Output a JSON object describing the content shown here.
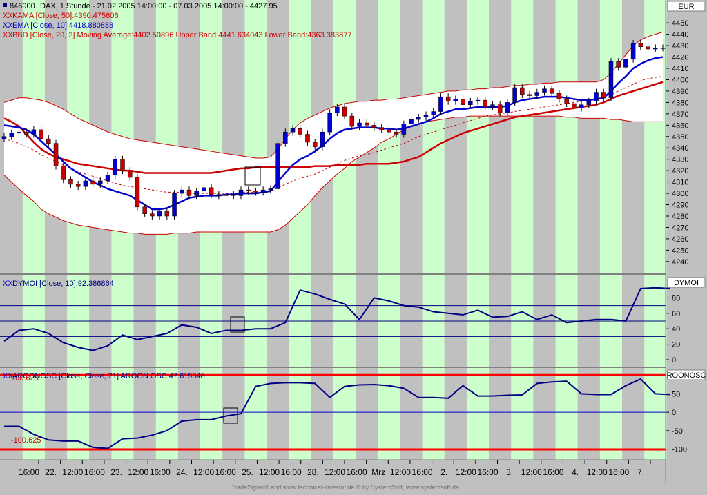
{
  "header": {
    "symbol": "846900",
    "name_line": "DAX, 1 Stunde - 21.02.2005 14:00:00 - 07.03.2005 14:00:00 - 4427.95",
    "kama_label": "KAMA [Close, 50]:4390.475606",
    "ema_label": "EMA [Close, 10]:4418.880888",
    "bbd_label": "BBD [Close, 20, 2] Moving Average:4402.50896 Upper Band:4441.634043 Lower Band:4363.383877",
    "dymoi_label": "DYMOI [Close, 10]:92.386864",
    "aroon_label": "AROONOSC [Close, Close, 21] AROON OSC:47.619048",
    "xx_mark": "XX"
  },
  "axes": {
    "price_unit": "EUR",
    "dymoi_unit": "DYMOI",
    "aroon_unit": "ROONOSC",
    "aroon_upper_label": "100.625",
    "aroon_lower_label": "-100.625"
  },
  "footer": {
    "credit": "TradeSignal® and www.technical-investor.de © by SystemSoft, www.systemsoft.de"
  },
  "colors": {
    "up_candle": "#0000cc",
    "down_candle": "#cc0000",
    "ema": "#0000cc",
    "kama": "#cc0000",
    "band": "#cc0000",
    "green_session": "#ccffcc",
    "grey_session": "#c0c0c0",
    "oscillator": "#000080"
  },
  "chart_data": [
    {
      "type": "candlestick",
      "title": "846900 DAX, 1 Stunde",
      "ylabel": "EUR",
      "ylim": [
        4232,
        4458
      ],
      "yticks": [
        4240,
        4250,
        4260,
        4270,
        4280,
        4290,
        4300,
        4310,
        4320,
        4330,
        4340,
        4350,
        4360,
        4370,
        4380,
        4390,
        4400,
        4410,
        4420,
        4430,
        4440,
        4450
      ],
      "x_labels": [
        "16:00",
        "22.",
        "12:00",
        "16:00",
        "23.",
        "12:00",
        "16:00",
        "24.",
        "12:00",
        "16:00",
        "25.",
        "12:00",
        "16:00",
        "28.",
        "12:00",
        "16:00",
        "Mrz",
        "12:00",
        "16:00",
        "2.",
        "12:00",
        "16:00",
        "3.",
        "12:00",
        "16:00",
        "4.",
        "12:00",
        "16:00",
        "7."
      ],
      "closes": [
        4350,
        4353,
        4354,
        4352,
        4356,
        4348,
        4344,
        4324,
        4312,
        4308,
        4306,
        4311,
        4308,
        4311,
        4316,
        4330,
        4320,
        4314,
        4288,
        4282,
        4280,
        4284,
        4280,
        4300,
        4303,
        4298,
        4302,
        4305,
        4299,
        4298,
        4299,
        4298,
        4303,
        4302,
        4301,
        4303,
        4304,
        4344,
        4354,
        4357,
        4352,
        4345,
        4341,
        4354,
        4371,
        4376,
        4368,
        4359,
        4362,
        4360,
        4358,
        4356,
        4354,
        4352,
        4361,
        4365,
        4367,
        4369,
        4372,
        4385,
        4381,
        4383,
        4378,
        4381,
        4382,
        4376,
        4378,
        4371,
        4380,
        4393,
        4387,
        4386,
        4389,
        4392,
        4388,
        4383,
        4379,
        4375,
        4378,
        4381,
        4389,
        4384,
        4416,
        4411,
        4418,
        4432,
        4429,
        4427,
        4428,
        4428
      ],
      "series": [
        {
          "name": "KAMA [Close, 50]",
          "values": [
            4366,
            4363,
            4359,
            4352,
            4345,
            4339,
            4335,
            4332,
            4330,
            4328,
            4326,
            4325,
            4324,
            4323,
            4322,
            4321,
            4320,
            4320,
            4319,
            4318,
            4318,
            4318,
            4318,
            4318,
            4318,
            4318,
            4318,
            4318,
            4318,
            4319,
            4320,
            4321,
            4322,
            4322,
            4323,
            4323,
            4323,
            4323,
            4323,
            4323,
            4323,
            4323,
            4324,
            4324,
            4324,
            4325,
            4325,
            4325,
            4325,
            4326,
            4326,
            4326,
            4326,
            4327,
            4328,
            4330,
            4332,
            4336,
            4340,
            4344,
            4347,
            4350,
            4353,
            4355,
            4357,
            4359,
            4361,
            4363,
            4365,
            4367,
            4368,
            4369,
            4370,
            4371,
            4372,
            4373,
            4374,
            4375,
            4376,
            4377,
            4378,
            4380,
            4383,
            4386,
            4388,
            4390,
            4392,
            4394,
            4396,
            4398
          ]
        },
        {
          "name": "EMA [Close, 10]",
          "values": [
            4360,
            4359,
            4358,
            4356,
            4352,
            4346,
            4340,
            4334,
            4328,
            4322,
            4318,
            4314,
            4310,
            4307,
            4304,
            4302,
            4300,
            4298,
            4294,
            4290,
            4286,
            4286,
            4287,
            4290,
            4293,
            4296,
            4297,
            4298,
            4298,
            4298,
            4299,
            4299,
            4300,
            4300,
            4300,
            4301,
            4302,
            4310,
            4318,
            4325,
            4330,
            4333,
            4337,
            4342,
            4348,
            4353,
            4356,
            4357,
            4358,
            4358,
            4358,
            4357,
            4357,
            4356,
            4357,
            4359,
            4361,
            4363,
            4366,
            4370,
            4372,
            4374,
            4374,
            4375,
            4376,
            4376,
            4376,
            4376,
            4377,
            4380,
            4382,
            4383,
            4384,
            4385,
            4385,
            4385,
            4384,
            4383,
            4382,
            4382,
            4383,
            4384,
            4390,
            4397,
            4403,
            4410,
            4414,
            4417,
            4419,
            4420
          ]
        },
        {
          "name": "Moving Average",
          "values": [
            4348,
            4346,
            4344,
            4341,
            4338,
            4334,
            4331,
            4328,
            4325,
            4322,
            4319,
            4317,
            4315,
            4313,
            4311,
            4309,
            4307,
            4306,
            4305,
            4304,
            4303,
            4302,
            4301,
            4301,
            4301,
            4300,
            4300,
            4300,
            4300,
            4300,
            4300,
            4300,
            4301,
            4301,
            4301,
            4301,
            4302,
            4305,
            4308,
            4311,
            4313,
            4315,
            4317,
            4320,
            4323,
            4326,
            4329,
            4331,
            4333,
            4334,
            4336,
            4338,
            4340,
            4342,
            4344,
            4347,
            4350,
            4352,
            4354,
            4356,
            4358,
            4360,
            4362,
            4364,
            4366,
            4368,
            4369,
            4370,
            4371,
            4372,
            4373,
            4374,
            4375,
            4376,
            4377,
            4378,
            4379,
            4380,
            4381,
            4382,
            4383,
            4385,
            4387,
            4390,
            4393,
            4396,
            4399,
            4401,
            4402,
            4403
          ]
        },
        {
          "name": "Upper Band",
          "values": [
            4380,
            4382,
            4384,
            4384,
            4383,
            4382,
            4380,
            4377,
            4374,
            4370,
            4366,
            4363,
            4360,
            4357,
            4354,
            4352,
            4350,
            4348,
            4347,
            4346,
            4345,
            4344,
            4343,
            4342,
            4341,
            4340,
            4339,
            4338,
            4337,
            4336,
            4335,
            4334,
            4333,
            4332,
            4331,
            4331,
            4332,
            4339,
            4348,
            4356,
            4362,
            4366,
            4369,
            4372,
            4375,
            4377,
            4379,
            4380,
            4381,
            4381,
            4382,
            4382,
            4383,
            4383,
            4384,
            4385,
            4386,
            4387,
            4388,
            4389,
            4390,
            4390,
            4391,
            4391,
            4392,
            4392,
            4393,
            4393,
            4394,
            4395,
            4395,
            4396,
            4396,
            4397,
            4397,
            4398,
            4398,
            4398,
            4398,
            4398,
            4398,
            4400,
            4406,
            4414,
            4422,
            4430,
            4435,
            4438,
            4440,
            4442
          ]
        },
        {
          "name": "Lower Band",
          "values": [
            4316,
            4310,
            4304,
            4298,
            4293,
            4286,
            4282,
            4279,
            4276,
            4274,
            4272,
            4271,
            4270,
            4269,
            4268,
            4267,
            4266,
            4265,
            4265,
            4264,
            4264,
            4264,
            4264,
            4265,
            4265,
            4265,
            4266,
            4266,
            4266,
            4266,
            4266,
            4266,
            4266,
            4266,
            4266,
            4266,
            4266,
            4268,
            4272,
            4278,
            4284,
            4290,
            4298,
            4305,
            4311,
            4317,
            4322,
            4328,
            4332,
            4336,
            4340,
            4345,
            4348,
            4352,
            4356,
            4359,
            4361,
            4363,
            4364,
            4365,
            4366,
            4367,
            4367,
            4368,
            4368,
            4368,
            4368,
            4368,
            4368,
            4368,
            4368,
            4368,
            4368,
            4368,
            4368,
            4368,
            4367,
            4367,
            4366,
            4366,
            4366,
            4366,
            4365,
            4365,
            4364,
            4363,
            4363,
            4363,
            4363,
            4363
          ]
        }
      ]
    },
    {
      "type": "line",
      "title": "DYMOI [Close, 10]",
      "ylim": [
        -8,
        108
      ],
      "yticks": [
        0,
        20,
        40,
        60,
        80
      ],
      "hlines": [
        30,
        50,
        70
      ],
      "series": [
        {
          "name": "DYMOI [Close, 10]",
          "x": [
            0,
            2,
            4,
            6,
            8,
            10,
            12,
            14,
            16,
            18,
            20,
            22,
            24,
            26,
            28,
            30,
            32,
            34,
            36,
            38,
            40,
            42,
            44,
            46,
            48,
            50,
            52,
            54,
            56,
            58,
            60,
            62,
            64,
            66,
            68,
            70,
            72,
            74,
            76,
            78,
            80,
            82,
            84,
            86,
            88,
            90
          ],
          "values": [
            24,
            38,
            40,
            34,
            22,
            16,
            12,
            18,
            32,
            26,
            30,
            34,
            45,
            42,
            34,
            38,
            38,
            40,
            40,
            48,
            90,
            85,
            78,
            72,
            52,
            80,
            76,
            70,
            68,
            62,
            60,
            58,
            64,
            55,
            56,
            62,
            52,
            58,
            48,
            50,
            52,
            52,
            50,
            92,
            93,
            92
          ]
        }
      ]
    },
    {
      "type": "line",
      "title": "AROONOSC [Close, Close, 21] AROON OSC",
      "ylim": [
        -125,
        118
      ],
      "yticks": [
        -100,
        -50,
        0,
        50
      ],
      "hlines": [
        100.625,
        -100.625,
        0
      ],
      "series": [
        {
          "name": "AROON OSC",
          "x": [
            0,
            2,
            4,
            6,
            8,
            10,
            12,
            14,
            16,
            18,
            20,
            22,
            24,
            26,
            28,
            30,
            32,
            34,
            36,
            38,
            40,
            42,
            44,
            46,
            48,
            50,
            52,
            54,
            56,
            58,
            60,
            62,
            64,
            66,
            68,
            70,
            72,
            74,
            76,
            78,
            80,
            82,
            84,
            86,
            88,
            90
          ],
          "values": [
            -38,
            -38,
            -60,
            -75,
            -78,
            -78,
            -95,
            -98,
            -72,
            -70,
            -62,
            -50,
            -24,
            -20,
            -20,
            -10,
            -4,
            70,
            78,
            80,
            80,
            78,
            40,
            70,
            74,
            75,
            72,
            65,
            40,
            40,
            38,
            72,
            44,
            44,
            46,
            47,
            78,
            82,
            84,
            50,
            48,
            48,
            72,
            90,
            50,
            48
          ]
        }
      ]
    }
  ]
}
